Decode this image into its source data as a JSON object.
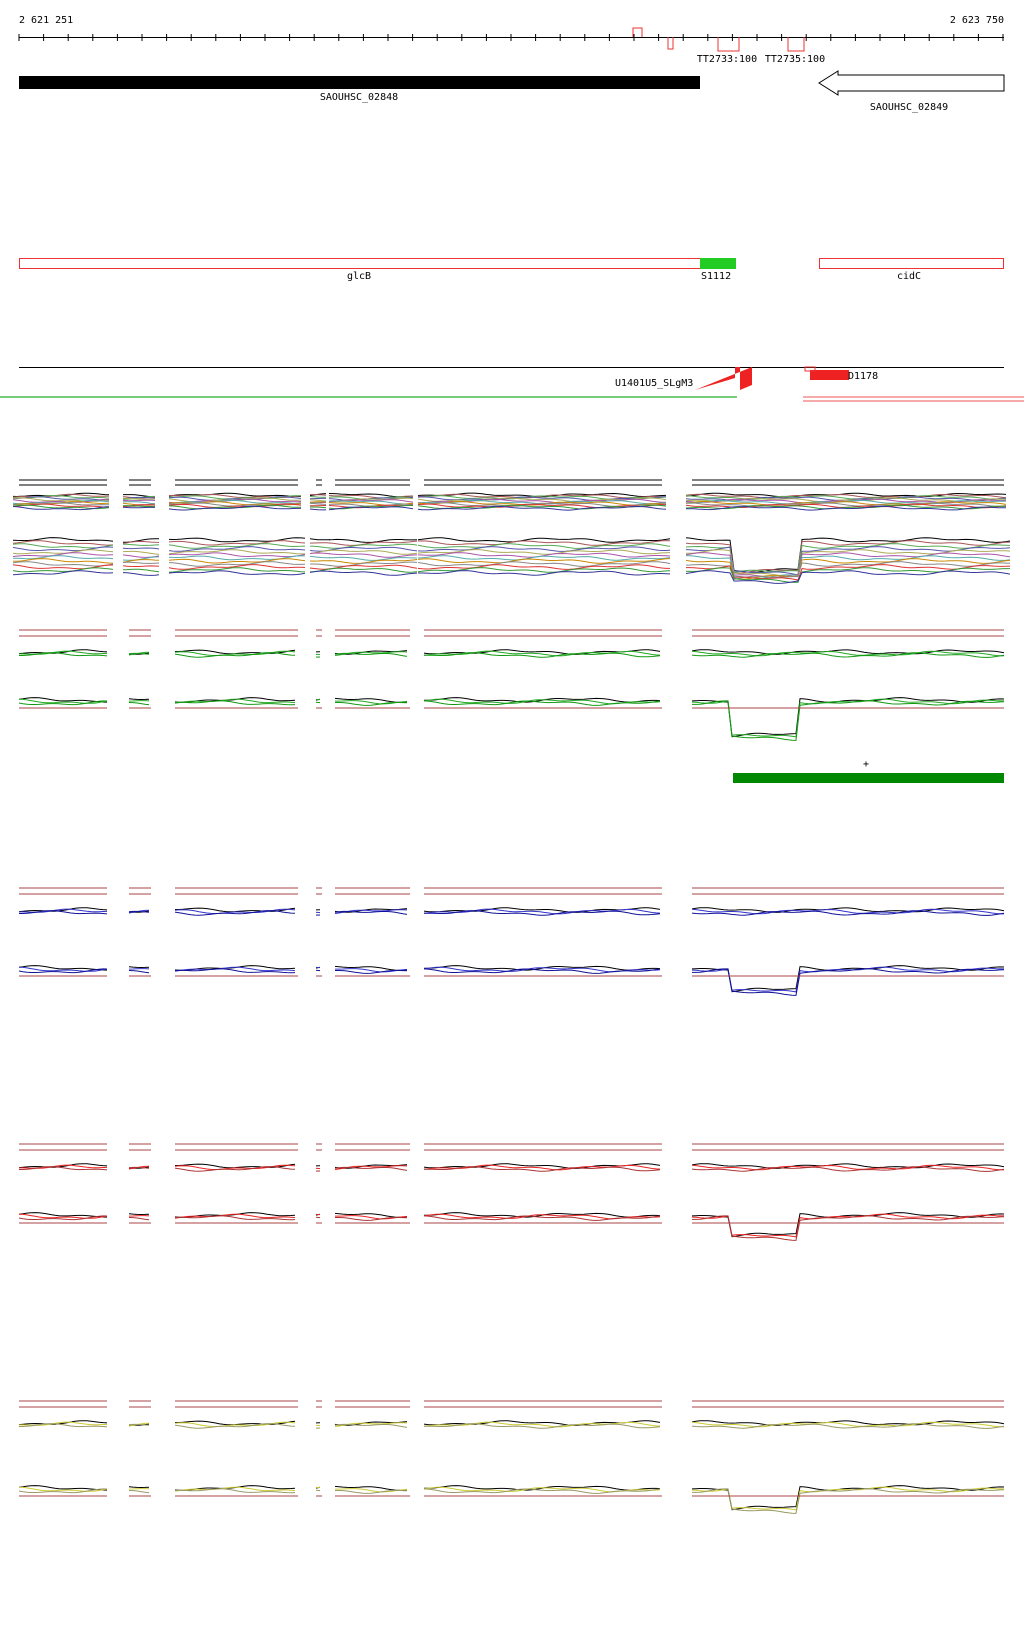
{
  "ruler": {
    "start": "2 621 251",
    "end": "2 623 750"
  },
  "terminators": [
    "TT2733:100",
    "TT2735:100"
  ],
  "genes": [
    "SAOUHSC_02848",
    "SAOUHSC_02849"
  ],
  "annotations": [
    "glcB",
    "S1112",
    "cidC"
  ],
  "transcripts": [
    "U1401U5_SLgM3",
    "D1178"
  ],
  "strand": "+"
}
